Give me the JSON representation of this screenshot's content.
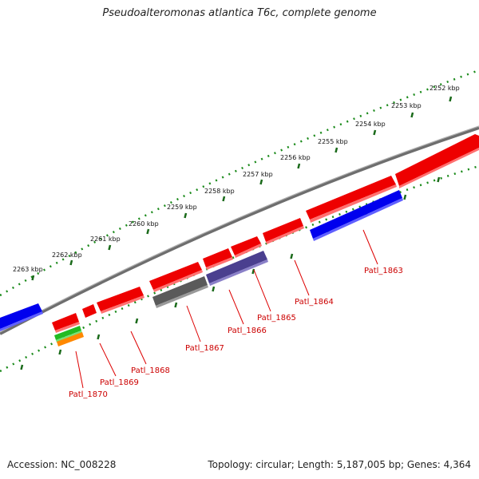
{
  "title": "Pseudoalteromonas atlantica T6c, complete genome",
  "footer": {
    "accession": "Accession: NC_008228",
    "summary": "Topology: circular; Length: 5,187,005 bp; Genes: 4,364"
  },
  "colors": {
    "backbone": "#808080",
    "ticks": "#1a8a1a",
    "label": "#cc0000",
    "feature_red": "#ee0000",
    "feature_blue": "#0000ee",
    "feature_purple": "#4a3f8f",
    "feature_gray": "#5a5a5a",
    "feature_green": "#22bb22",
    "feature_orange": "#ff8800"
  },
  "kbp_labels": [
    "2252 kbp",
    "2253 kbp",
    "2254 kbp",
    "2255 kbp",
    "2256 kbp",
    "2257 kbp",
    "2258 kbp",
    "2259 kbp",
    "2260 kbp",
    "2261 kbp",
    "2262 kbp",
    "2263 kbp"
  ],
  "gene_labels": [
    "Patl_1863",
    "Patl_1864",
    "Patl_1865",
    "Patl_1866",
    "Patl_1867",
    "Patl_1868",
    "Patl_1869",
    "Patl_1870"
  ]
}
